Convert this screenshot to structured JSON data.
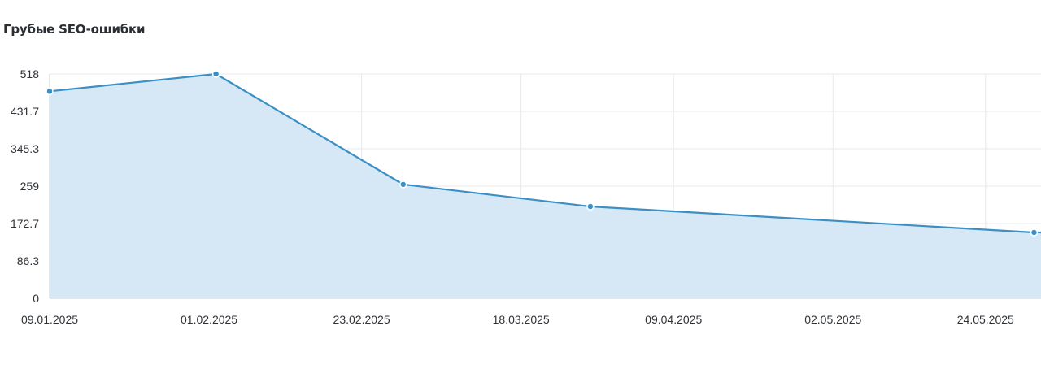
{
  "chart_data": {
    "type": "area",
    "title": "Грубые SEO-ошибки",
    "xlabel": "",
    "ylabel": "",
    "x_tick_labels": [
      "09.01.2025",
      "01.02.2025",
      "23.02.2025",
      "18.03.2025",
      "09.04.2025",
      "02.05.2025",
      "24.05.2025"
    ],
    "y_tick_labels": [
      "0",
      "86.3",
      "172.7",
      "259",
      "345.3",
      "431.7",
      "518"
    ],
    "ylim": [
      0,
      518
    ],
    "xlim": [
      "2025-01-09",
      "2025-06-01"
    ],
    "grid": true,
    "legend": "none",
    "series": [
      {
        "x": [
          "2025-01-09",
          "2025-02-02",
          "2025-03-01",
          "2025-03-28",
          "2025-05-31"
        ],
        "values": [
          478,
          518,
          263,
          212,
          152
        ]
      }
    ],
    "colors": {
      "line": "#3a8fc4",
      "fill": "#d6e8f5",
      "marker": "#3a8fc4",
      "marker_stroke": "#ffffff",
      "grid": "#e6e8eb",
      "axis": "#c8ccd2"
    }
  }
}
